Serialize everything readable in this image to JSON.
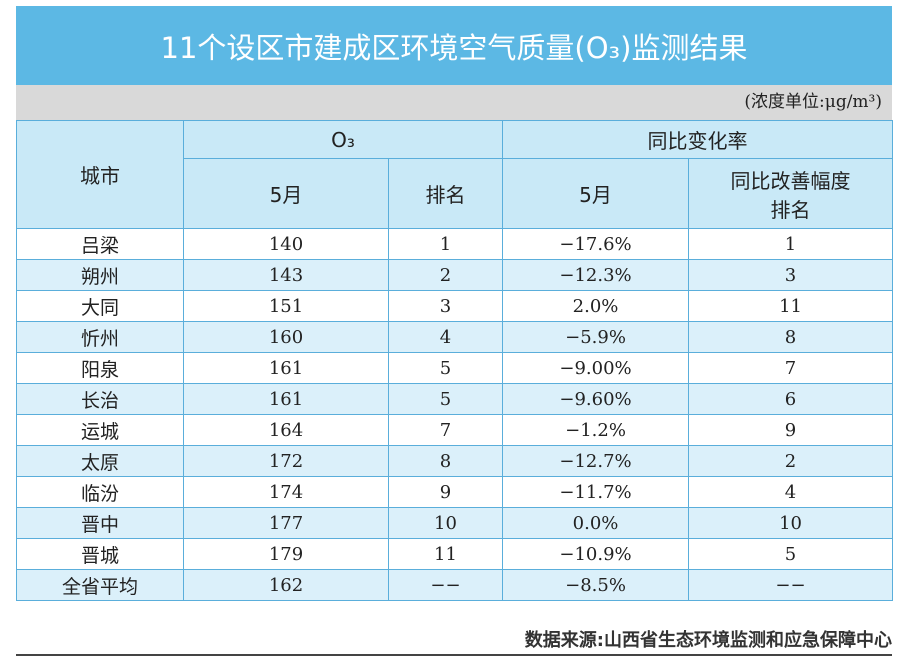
{
  "title": "11个设区市建成区环境空气质量(O₃)监测结果",
  "unit": "(浓度单位:μg/m³)",
  "header": {
    "city": "城市",
    "group1": "O₃",
    "group2": "同比变化率",
    "col1": "5月",
    "col2": "排名",
    "col3": "5月",
    "col4": "同比改善幅度排名"
  },
  "rows": [
    [
      "吕梁",
      "140",
      "1",
      "−17.6%",
      "1"
    ],
    [
      "朔州",
      "143",
      "2",
      "−12.3%",
      "3"
    ],
    [
      "大同",
      "151",
      "3",
      "2.0%",
      "11"
    ],
    [
      "忻州",
      "160",
      "4",
      "−5.9%",
      "8"
    ],
    [
      "阳泉",
      "161",
      "5",
      "−9.00%",
      "7"
    ],
    [
      "长治",
      "161",
      "5",
      "−9.60%",
      "6"
    ],
    [
      "运城",
      "164",
      "7",
      "−1.2%",
      "9"
    ],
    [
      "太原",
      "172",
      "8",
      "−12.7%",
      "2"
    ],
    [
      "临汾",
      "174",
      "9",
      "−11.7%",
      "4"
    ],
    [
      "晋中",
      "177",
      "10",
      "0.0%",
      "10"
    ],
    [
      "晋城",
      "179",
      "11",
      "−10.9%",
      "5"
    ],
    [
      "全省平均",
      "162",
      "−−",
      "−8.5%",
      "−−"
    ]
  ],
  "source": "数据来源:山西省生态环境监测和应急保障中心"
}
